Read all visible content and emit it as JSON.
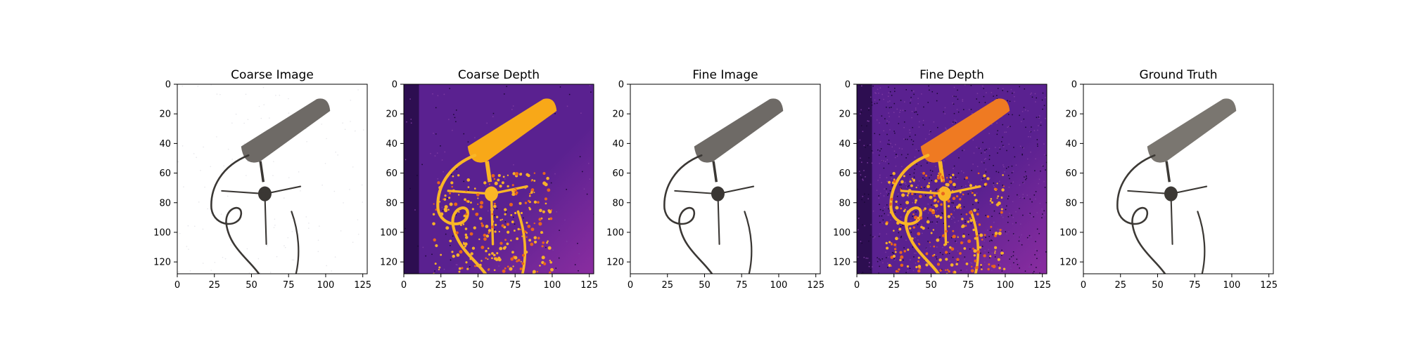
{
  "figure": {
    "panels": [
      {
        "id": "coarse-image",
        "title": "Coarse Image",
        "kind": "image"
      },
      {
        "id": "coarse-depth",
        "title": "Coarse Depth",
        "kind": "depth",
        "noise": "low"
      },
      {
        "id": "fine-image",
        "title": "Fine Image",
        "kind": "image"
      },
      {
        "id": "fine-depth",
        "title": "Fine Depth",
        "kind": "depth",
        "noise": "high"
      },
      {
        "id": "ground-truth",
        "title": "Ground Truth",
        "kind": "image"
      }
    ]
  },
  "chart_data": [
    {
      "type": "heatmap",
      "title": "Coarse Image",
      "subject": "microphone render",
      "xlim": [
        0,
        128
      ],
      "ylim": [
        128,
        0
      ],
      "x_ticks": [
        0,
        25,
        50,
        75,
        100,
        125
      ],
      "y_ticks": [
        0,
        20,
        40,
        60,
        80,
        100,
        120
      ]
    },
    {
      "type": "heatmap",
      "title": "Coarse Depth",
      "colormap": "inferno",
      "xlim": [
        0,
        128
      ],
      "ylim": [
        128,
        0
      ],
      "x_ticks": [
        0,
        25,
        50,
        75,
        100,
        125
      ],
      "y_ticks": [
        0,
        20,
        40,
        60,
        80,
        100,
        120
      ]
    },
    {
      "type": "heatmap",
      "title": "Fine Image",
      "subject": "microphone render",
      "xlim": [
        0,
        128
      ],
      "ylim": [
        128,
        0
      ],
      "x_ticks": [
        0,
        25,
        50,
        75,
        100,
        125
      ],
      "y_ticks": [
        0,
        20,
        40,
        60,
        80,
        100,
        120
      ]
    },
    {
      "type": "heatmap",
      "title": "Fine Depth",
      "colormap": "inferno",
      "xlim": [
        0,
        128
      ],
      "ylim": [
        128,
        0
      ],
      "x_ticks": [
        0,
        25,
        50,
        75,
        100,
        125
      ],
      "y_ticks": [
        0,
        20,
        40,
        60,
        80,
        100,
        120
      ]
    },
    {
      "type": "heatmap",
      "title": "Ground Truth",
      "subject": "microphone photo",
      "xlim": [
        0,
        128
      ],
      "ylim": [
        128,
        0
      ],
      "x_ticks": [
        0,
        25,
        50,
        75,
        100,
        125
      ],
      "y_ticks": [
        0,
        20,
        40,
        60,
        80,
        100,
        120
      ]
    }
  ],
  "colors": {
    "depth_bg_dark": "#1a0736",
    "depth_bg_mid": "#5a2190",
    "depth_object": "#f8a818",
    "depth_object_fine": "#ef7a22",
    "mic_body": "#6e6a66",
    "mic_dark": "#3a3734",
    "axis": "#000000"
  }
}
